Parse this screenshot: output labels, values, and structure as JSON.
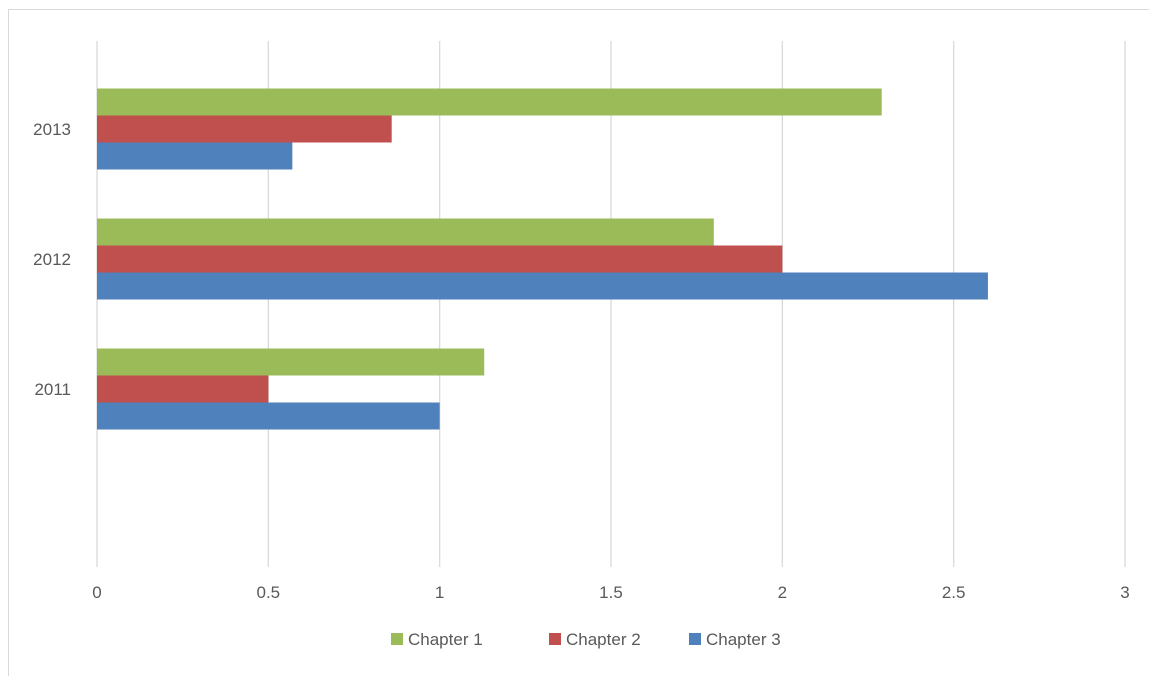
{
  "chart_data": {
    "type": "bar",
    "orientation": "horizontal",
    "title": "",
    "xlabel": "",
    "ylabel": "",
    "categories": [
      "2011",
      "2012",
      "2013"
    ],
    "series": [
      {
        "name": "Chapter 1",
        "values": [
          1.13,
          1.8,
          2.29
        ],
        "color": "#9bbb59"
      },
      {
        "name": "Chapter 2",
        "values": [
          0.5,
          2.0,
          0.86
        ],
        "color": "#c0504d"
      },
      {
        "name": "Chapter 3",
        "values": [
          1.0,
          2.6,
          0.57
        ],
        "color": "#4f81bd"
      }
    ],
    "xlim": [
      0,
      3
    ],
    "x_ticks": [
      0,
      0.5,
      1,
      1.5,
      2,
      2.5,
      3
    ],
    "x_tick_labels": [
      "0",
      "0.5",
      "1",
      "1.5",
      "2",
      "2.5",
      "3"
    ],
    "grid": "vertical",
    "legend_position": "bottom",
    "gridline_color": "#d9d9d9"
  }
}
